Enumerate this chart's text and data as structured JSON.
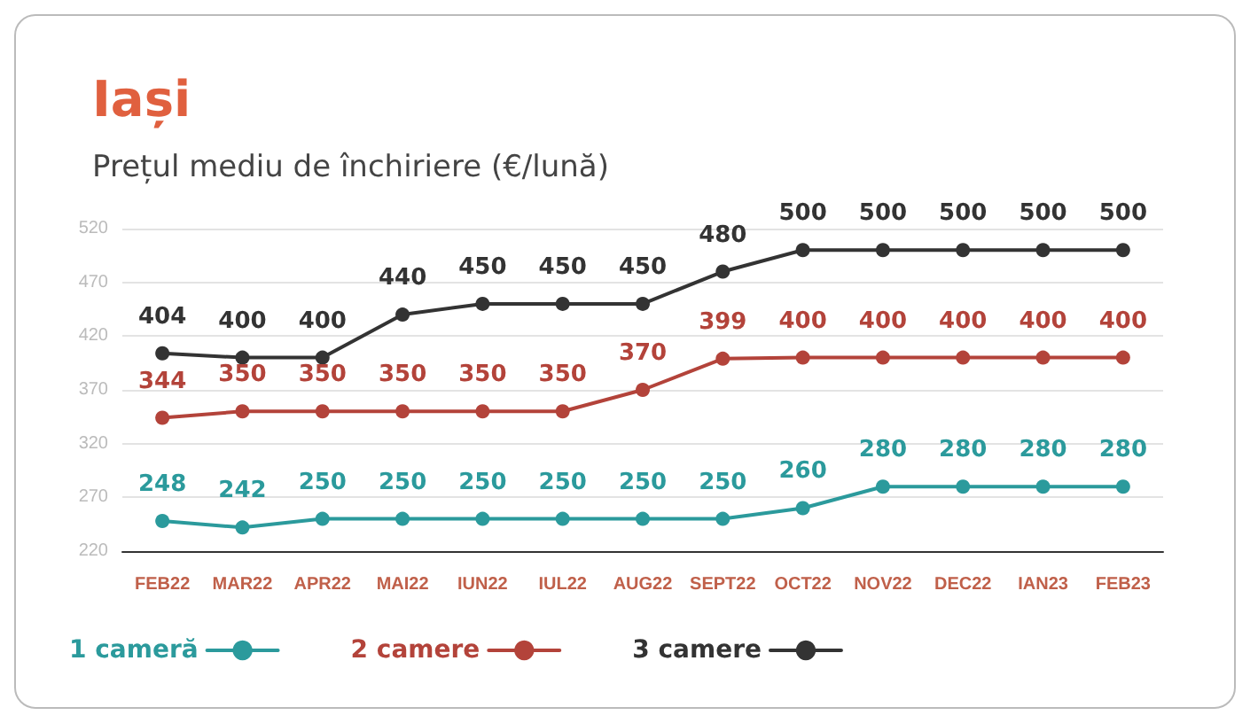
{
  "chart_data": {
    "type": "line",
    "title": "Iași",
    "subtitle": "Prețul mediu de închiriere (€/lună)",
    "categories": [
      "FEB22",
      "MAR22",
      "APR22",
      "MAI22",
      "IUN22",
      "IUL22",
      "AUG22",
      "SEPT22",
      "OCT22",
      "NOV22",
      "DEC22",
      "IAN23",
      "FEB23"
    ],
    "series": [
      {
        "name": "1 cameră",
        "color": "#2b9a9c",
        "values": [
          248,
          242,
          250,
          250,
          250,
          250,
          250,
          250,
          260,
          280,
          280,
          280,
          280
        ]
      },
      {
        "name": "2 camere",
        "color": "#b3433a",
        "values": [
          344,
          350,
          350,
          350,
          350,
          350,
          370,
          399,
          400,
          400,
          400,
          400,
          400
        ]
      },
      {
        "name": "3 camere",
        "color": "#333333",
        "values": [
          404,
          400,
          400,
          440,
          450,
          450,
          450,
          480,
          500,
          500,
          500,
          500,
          500
        ]
      }
    ],
    "ylim": [
      220,
      520
    ],
    "yticks": [
      220,
      270,
      320,
      370,
      420,
      470,
      520
    ],
    "grid": "y",
    "legend": "bottom left",
    "marker": "circle",
    "line_style": "solid",
    "data_labels": true
  }
}
